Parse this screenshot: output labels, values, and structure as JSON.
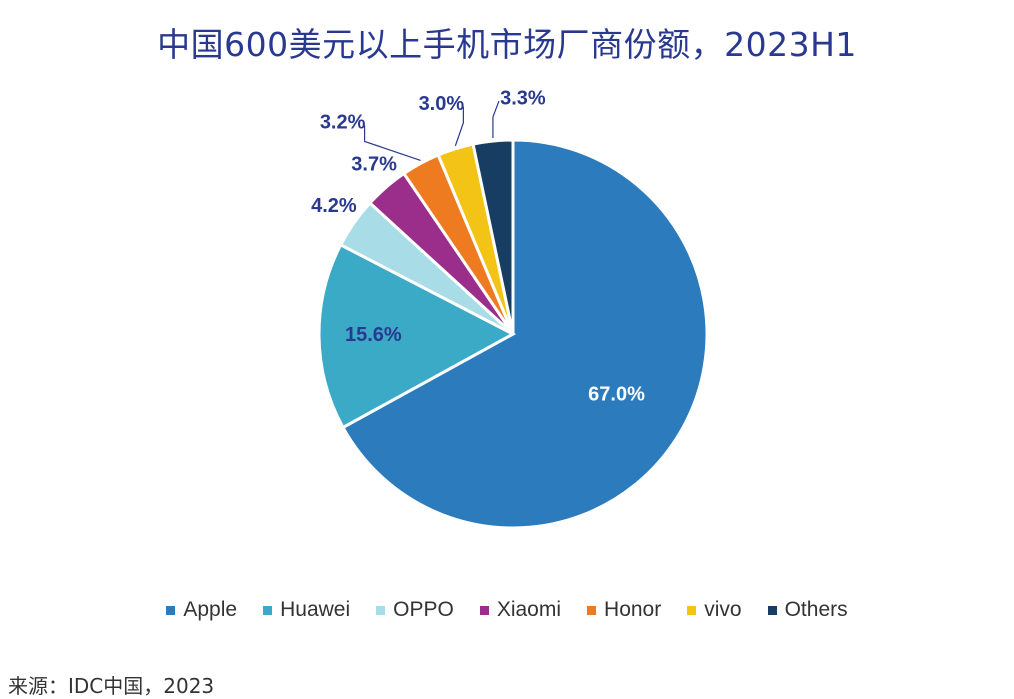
{
  "chart_data": {
    "type": "pie",
    "title": "中国600美元以上手机市场厂商份额，2023H1",
    "series": [
      {
        "name": "Apple",
        "value": 67.0,
        "label": "67.0%",
        "color": "#2b7bbd"
      },
      {
        "name": "Huawei",
        "value": 15.6,
        "label": "15.6%",
        "color": "#3aaac7"
      },
      {
        "name": "OPPO",
        "value": 4.2,
        "label": "4.2%",
        "color": "#a8dce6"
      },
      {
        "name": "Xiaomi",
        "value": 3.7,
        "label": "3.7%",
        "color": "#9b2e8b"
      },
      {
        "name": "Honor",
        "value": 3.2,
        "label": "3.2%",
        "color": "#ef7b21"
      },
      {
        "name": "vivo",
        "value": 3.0,
        "label": "3.0%",
        "color": "#f3c316"
      },
      {
        "name": "Others",
        "value": 3.3,
        "label": "3.3%",
        "color": "#173d63"
      }
    ],
    "legend_position": "bottom",
    "label_color": "#2a3990"
  },
  "source": "来源：IDC中国，2023"
}
